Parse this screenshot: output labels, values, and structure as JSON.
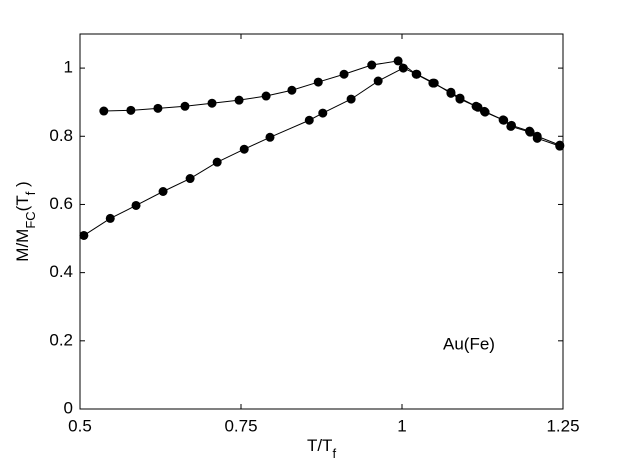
{
  "chart_data": {
    "type": "line",
    "xlabel": [
      "T/T",
      "f"
    ],
    "ylabel": [
      "M/M",
      "FC",
      "(T",
      "f",
      " )"
    ],
    "annotation": "Au(Fe)",
    "xlim": [
      0.5,
      1.25
    ],
    "xticks": [
      0.5,
      0.75,
      1,
      1.25
    ],
    "ylim": [
      0,
      1.1
    ],
    "yticks": [
      0,
      0.2,
      0.4,
      0.6,
      0.8,
      1
    ],
    "series": [
      {
        "color": "#000000",
        "x": [
          0.537,
          0.579,
          0.621,
          0.663,
          0.705,
          0.747,
          0.789,
          0.829,
          0.87,
          0.91,
          0.953,
          0.994,
          1.022,
          1.048,
          1.076,
          1.09,
          1.115,
          1.128,
          1.157,
          1.17,
          1.198,
          1.21,
          1.245
        ],
        "values": [
          0.874,
          0.876,
          0.882,
          0.888,
          0.897,
          0.906,
          0.918,
          0.935,
          0.959,
          0.982,
          1.009,
          1.021,
          0.982,
          0.956,
          0.929,
          0.912,
          0.888,
          0.873,
          0.848,
          0.832,
          0.815,
          0.8,
          0.774
        ]
      },
      {
        "color": "#000000",
        "x": [
          0.506,
          0.547,
          0.587,
          0.629,
          0.671,
          0.713,
          0.755,
          0.795,
          0.856,
          0.877,
          0.921,
          0.963,
          1.002,
          1.023,
          1.05,
          1.076,
          1.09,
          1.118,
          1.129,
          1.158,
          1.169,
          1.199,
          1.21,
          1.245
        ],
        "values": [
          0.509,
          0.559,
          0.597,
          0.638,
          0.676,
          0.724,
          0.762,
          0.797,
          0.847,
          0.868,
          0.909,
          0.962,
          1.0,
          0.982,
          0.956,
          0.926,
          0.909,
          0.885,
          0.871,
          0.847,
          0.829,
          0.812,
          0.794,
          0.771
        ]
      }
    ]
  }
}
